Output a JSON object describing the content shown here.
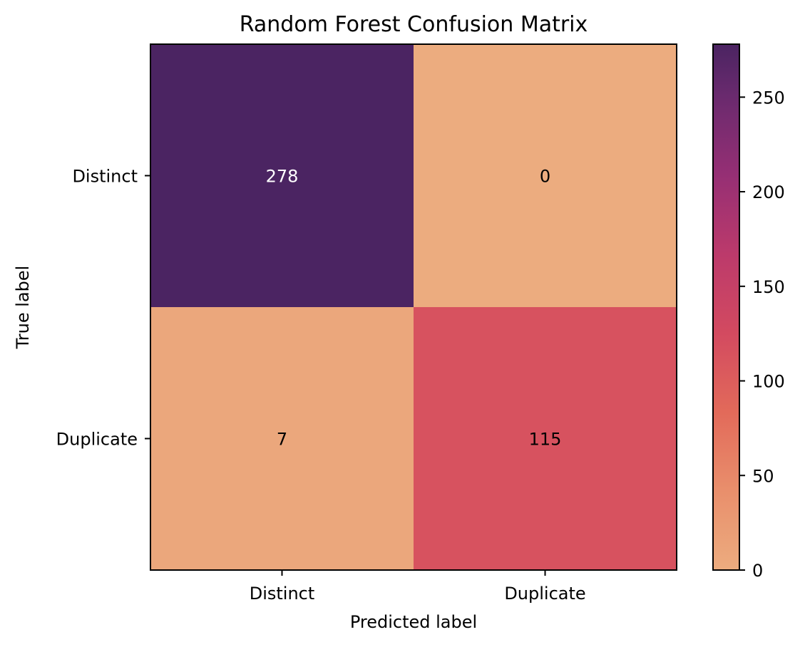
{
  "chart_data": {
    "type": "heatmap",
    "title": "Random Forest Confusion Matrix",
    "xlabel": "Predicted label",
    "ylabel": "True label",
    "x_categories": [
      "Distinct",
      "Duplicate"
    ],
    "y_categories": [
      "Distinct",
      "Duplicate"
    ],
    "matrix": [
      [
        278,
        0
      ],
      [
        7,
        115
      ]
    ],
    "colorbar": {
      "colormap": "flare",
      "min": 0,
      "max": 278,
      "ticks": [
        0,
        50,
        100,
        150,
        200,
        250
      ]
    },
    "grid": false
  },
  "colors": {
    "low": "#ebab7e",
    "high": "#4b2462",
    "dark_text": "#000000",
    "light_text": "#ffffff"
  }
}
